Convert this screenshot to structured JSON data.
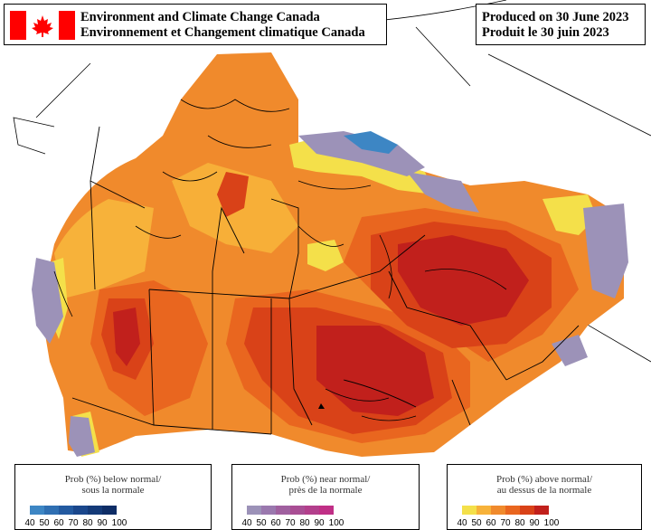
{
  "header": {
    "agency_en": "Environment and Climate Change Canada",
    "agency_fr": "Environnement et Changement climatique Canada",
    "produced_en": "Produced on 30 June 2023",
    "produced_fr": "Produit le 30 juin 2023"
  },
  "legend": {
    "below": {
      "title_en": "Prob (%) below normal/",
      "title_fr": "sous la normale",
      "ticks": [
        "40",
        "50",
        "60",
        "70",
        "80",
        "90",
        "100"
      ],
      "colors": [
        "#3d86c4",
        "#2f6fb2",
        "#235aa0",
        "#1a478c",
        "#143a78",
        "#0e2d66"
      ]
    },
    "near": {
      "title_en": "Prob (%) near normal/",
      "title_fr": "près de la normale",
      "ticks": [
        "40",
        "50",
        "60",
        "70",
        "80",
        "90",
        "100"
      ],
      "colors": [
        "#9c92b8",
        "#9a78ae",
        "#a0609f",
        "#a94e94",
        "#b33f8c",
        "#c02f86"
      ]
    },
    "above": {
      "title_en": "Prob (%) above normal/",
      "title_fr": "au dessus de la normale",
      "ticks": [
        "40",
        "50",
        "60",
        "70",
        "80",
        "90",
        "100"
      ],
      "colors": [
        "#f4e04a",
        "#f7b23a",
        "#f08a2c",
        "#e9661f",
        "#d94218",
        "#c1201c"
      ]
    }
  },
  "map_colors": {
    "light_orange": "#f7b23a",
    "orange": "#f08a2c",
    "dark_orange": "#e9661f",
    "red": "#d94218",
    "dark_red": "#c1201c",
    "yellow": "#f4e04a",
    "near_normal": "#9c92b8",
    "below_normal": "#3d86c4"
  }
}
